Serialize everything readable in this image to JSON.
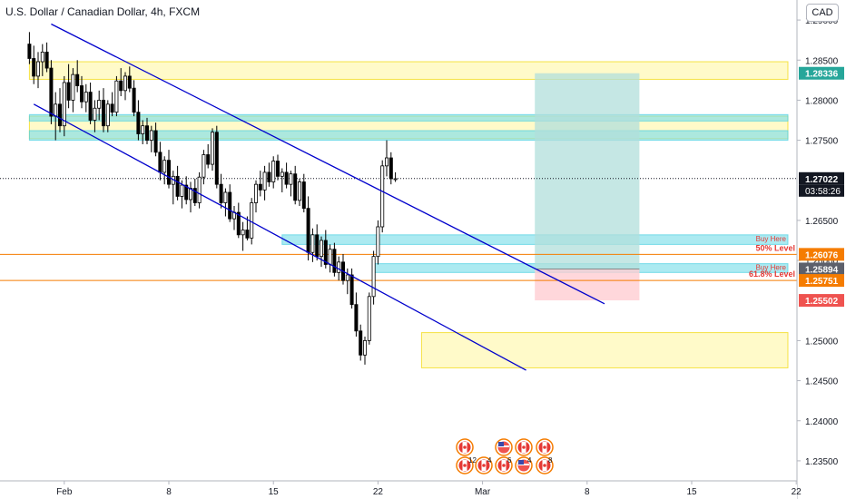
{
  "header": {
    "title": "U.S. Dollar / Canadian Dollar, 4h, FXCM",
    "currency": "CAD"
  },
  "colors": {
    "bull": "#ffffff",
    "bear": "#000000",
    "channel": "#0000cc",
    "zone_yellow": "#fff59d",
    "zone_cyan": "#80deea",
    "target_zone": "#b2dfdb",
    "stop_zone": "#ffcdd2",
    "level_orange": "#f57c00",
    "price_tag_green": "#26a69a",
    "price_tag_black": "#131722",
    "price_tag_orange": "#f57c00",
    "price_tag_red": "#ef5350",
    "price_tag_gray": "#5d606b",
    "zone_label_red": "#e53935"
  },
  "chart_data": {
    "type": "candlestick",
    "ylim": [
      1.2325,
      1.2925
    ],
    "y_ticks": [
      "1.29000",
      "1.28500",
      "1.28000",
      "1.27500",
      "1.26500",
      "1.26000",
      "1.25000",
      "1.24500",
      "1.24000",
      "1.23500"
    ],
    "y_tick_values": [
      1.29,
      1.285,
      1.28,
      1.275,
      1.265,
      1.26,
      1.25,
      1.245,
      1.24,
      1.235
    ],
    "x_ticks": [
      "Feb",
      "8",
      "15",
      "22",
      "Mar",
      "8",
      "15",
      "22"
    ],
    "x_tick_bars": [
      6,
      30,
      54,
      78,
      102,
      126,
      150,
      174
    ],
    "current_price": 1.27022,
    "countdown": "03:58:26",
    "price_labels": [
      {
        "text": "1.28336",
        "value": 1.28336,
        "style": "green"
      },
      {
        "text": "1.27022",
        "value": 1.27022,
        "style": "black"
      },
      {
        "text": "1.26076",
        "value": 1.26076,
        "style": "orange"
      },
      {
        "text": "1.25894",
        "value": 1.25894,
        "style": "gray"
      },
      {
        "text": "1.25751",
        "value": 1.25751,
        "style": "orange"
      },
      {
        "text": "1.25502",
        "value": 1.25502,
        "style": "red"
      }
    ],
    "horizontal_levels": [
      {
        "label": "50% Level",
        "value": 1.26076
      },
      {
        "label": "61.8% Level",
        "value": 1.25751
      }
    ],
    "zones": [
      {
        "kind": "yellow",
        "from_bar": -2,
        "to_bar": 178,
        "top": 1.2848,
        "bottom": 1.2826
      },
      {
        "kind": "yellow",
        "from_bar": -2,
        "to_bar": 178,
        "top": 1.278,
        "bottom": 1.2752
      },
      {
        "kind": "cyan",
        "from_bar": -2,
        "to_bar": 178,
        "top": 1.2782,
        "bottom": 1.2774
      },
      {
        "kind": "cyan",
        "from_bar": -2,
        "to_bar": 178,
        "top": 1.2762,
        "bottom": 1.275
      },
      {
        "kind": "cyan",
        "from_bar": 56,
        "to_bar": 178,
        "top": 1.2632,
        "bottom": 1.262,
        "label": "Buy Here"
      },
      {
        "kind": "cyan",
        "from_bar": 77,
        "to_bar": 178,
        "top": 1.2596,
        "bottom": 1.2585,
        "label": "Buy Here"
      },
      {
        "kind": "yellow",
        "from_bar": 88,
        "to_bar": 178,
        "top": 1.251,
        "bottom": 1.2466
      }
    ],
    "position_tool": {
      "from_bar": 114,
      "to_bar": 138,
      "entry": 1.25894,
      "target": 1.28336,
      "stop": 1.25502
    },
    "channel_lines": [
      {
        "x1": 3,
        "y1": 1.2895,
        "x2": 130,
        "y2": 1.2546
      },
      {
        "x1": -1,
        "y1": 1.2795,
        "x2": 112,
        "y2": 1.2463
      }
    ],
    "candles": [
      [
        1.287,
        1.2885,
        1.2845,
        1.2852
      ],
      [
        1.2852,
        1.2868,
        1.282,
        1.283
      ],
      [
        1.283,
        1.286,
        1.2815,
        1.2848
      ],
      [
        1.2848,
        1.287,
        1.283,
        1.286
      ],
      [
        1.286,
        1.2872,
        1.2835,
        1.284
      ],
      [
        1.284,
        1.285,
        1.277,
        1.278
      ],
      [
        1.278,
        1.281,
        1.275,
        1.2795
      ],
      [
        1.2795,
        1.2815,
        1.276,
        1.2768
      ],
      [
        1.2768,
        1.283,
        1.2755,
        1.2822
      ],
      [
        1.2822,
        1.2845,
        1.279,
        1.28
      ],
      [
        1.28,
        1.284,
        1.2785,
        1.2832
      ],
      [
        1.2832,
        1.285,
        1.281,
        1.2818
      ],
      [
        1.2818,
        1.283,
        1.279,
        1.2798
      ],
      [
        1.2798,
        1.282,
        1.2785,
        1.281
      ],
      [
        1.281,
        1.2822,
        1.277,
        1.2775
      ],
      [
        1.2775,
        1.28,
        1.276,
        1.279
      ],
      [
        1.279,
        1.2812,
        1.2775,
        1.28
      ],
      [
        1.28,
        1.2815,
        1.276,
        1.2768
      ],
      [
        1.2768,
        1.28,
        1.276,
        1.2795
      ],
      [
        1.2795,
        1.281,
        1.278,
        1.2785
      ],
      [
        1.2785,
        1.283,
        1.278,
        1.2824
      ],
      [
        1.2824,
        1.284,
        1.2805,
        1.2812
      ],
      [
        1.2812,
        1.2835,
        1.28,
        1.283
      ],
      [
        1.283,
        1.2842,
        1.281,
        1.2815
      ],
      [
        1.2815,
        1.2825,
        1.278,
        1.2785
      ],
      [
        1.2785,
        1.28,
        1.275,
        1.2758
      ],
      [
        1.2758,
        1.2775,
        1.2745,
        1.2768
      ],
      [
        1.2768,
        1.2778,
        1.2745,
        1.275
      ],
      [
        1.275,
        1.2768,
        1.2735,
        1.2762
      ],
      [
        1.2762,
        1.2772,
        1.273,
        1.2735
      ],
      [
        1.2735,
        1.2748,
        1.27,
        1.271
      ],
      [
        1.271,
        1.273,
        1.2695,
        1.2725
      ],
      [
        1.2725,
        1.2738,
        1.269,
        1.2695
      ],
      [
        1.2695,
        1.2712,
        1.267,
        1.2705
      ],
      [
        1.2705,
        1.2718,
        1.2675,
        1.268
      ],
      [
        1.268,
        1.27,
        1.2665,
        1.2694
      ],
      [
        1.2694,
        1.2705,
        1.267,
        1.2676
      ],
      [
        1.2676,
        1.2698,
        1.266,
        1.269
      ],
      [
        1.269,
        1.2702,
        1.2668,
        1.2672
      ],
      [
        1.2672,
        1.271,
        1.2665,
        1.2704
      ],
      [
        1.2704,
        1.2738,
        1.2695,
        1.2732
      ],
      [
        1.2732,
        1.2745,
        1.2715,
        1.272
      ],
      [
        1.272,
        1.2765,
        1.2712,
        1.276
      ],
      [
        1.276,
        1.2768,
        1.269,
        1.2695
      ],
      [
        1.2695,
        1.2708,
        1.2665,
        1.2672
      ],
      [
        1.2672,
        1.269,
        1.2655,
        1.2685
      ],
      [
        1.2685,
        1.2695,
        1.2648,
        1.2652
      ],
      [
        1.2652,
        1.2668,
        1.2638,
        1.266
      ],
      [
        1.266,
        1.2672,
        1.2628,
        1.2632
      ],
      [
        1.2632,
        1.2648,
        1.2612,
        1.2638
      ],
      [
        1.2638,
        1.2655,
        1.2625,
        1.2628
      ],
      [
        1.2628,
        1.2678,
        1.262,
        1.2672
      ],
      [
        1.2672,
        1.27,
        1.266,
        1.2695
      ],
      [
        1.2695,
        1.2712,
        1.268,
        1.2688
      ],
      [
        1.2688,
        1.2718,
        1.2675,
        1.271
      ],
      [
        1.271,
        1.2722,
        1.2692,
        1.2698
      ],
      [
        1.2698,
        1.273,
        1.269,
        1.2724
      ],
      [
        1.2724,
        1.2732,
        1.27,
        1.2705
      ],
      [
        1.2705,
        1.2715,
        1.2685,
        1.271
      ],
      [
        1.271,
        1.2722,
        1.269,
        1.2695
      ],
      [
        1.2695,
        1.2712,
        1.268,
        1.2708
      ],
      [
        1.2708,
        1.2718,
        1.267,
        1.2675
      ],
      [
        1.2675,
        1.2702,
        1.2668,
        1.2698
      ],
      [
        1.2698,
        1.2708,
        1.266,
        1.2665
      ],
      [
        1.2665,
        1.268,
        1.26,
        1.261
      ],
      [
        1.261,
        1.264,
        1.2598,
        1.2632
      ],
      [
        1.2632,
        1.2645,
        1.26,
        1.2605
      ],
      [
        1.2605,
        1.263,
        1.2592,
        1.2625
      ],
      [
        1.2625,
        1.2638,
        1.259,
        1.2595
      ],
      [
        1.2595,
        1.262,
        1.2585,
        1.2614
      ],
      [
        1.2614,
        1.2622,
        1.258,
        1.2585
      ],
      [
        1.2585,
        1.2605,
        1.2575,
        1.2598
      ],
      [
        1.2598,
        1.2608,
        1.257,
        1.2575
      ],
      [
        1.2575,
        1.259,
        1.2558,
        1.2582
      ],
      [
        1.2582,
        1.259,
        1.254,
        1.2545
      ],
      [
        1.2545,
        1.256,
        1.2505,
        1.2512
      ],
      [
        1.2512,
        1.252,
        1.2475,
        1.2482
      ],
      [
        1.2482,
        1.2505,
        1.247,
        1.25
      ],
      [
        1.25,
        1.256,
        1.2495,
        1.2555
      ],
      [
        1.2555,
        1.2612,
        1.2545,
        1.2605
      ],
      [
        1.2605,
        1.265,
        1.2595,
        1.2642
      ],
      [
        1.2642,
        1.2725,
        1.2635,
        1.2718
      ],
      [
        1.2718,
        1.275,
        1.2705,
        1.2728
      ],
      [
        1.2728,
        1.2735,
        1.2695,
        1.2702
      ],
      [
        1.2702,
        1.271,
        1.2698,
        1.2702
      ]
    ],
    "candle_bars": [
      -2,
      -1,
      0,
      1,
      2,
      3,
      4,
      5,
      6,
      7,
      8,
      9,
      10,
      11,
      12,
      13,
      14,
      15,
      16,
      17,
      18,
      19,
      20,
      21,
      22,
      23,
      24,
      25,
      26,
      27,
      28,
      29,
      30,
      31,
      32,
      33,
      34,
      35,
      36,
      37,
      38,
      39,
      40,
      41,
      42,
      43,
      44,
      45,
      46,
      47,
      48,
      49,
      50,
      51,
      52,
      53,
      54,
      55,
      56,
      57,
      58,
      59,
      60,
      61,
      62,
      63,
      64,
      65,
      66,
      67,
      68,
      69,
      70,
      71,
      72,
      73,
      74,
      75,
      76,
      77,
      78,
      79,
      80,
      81,
      82
    ]
  },
  "events": [
    {
      "flag": "ca",
      "count": ""
    },
    {
      "flag": "us",
      "count": ""
    },
    {
      "flag": "ca",
      "count": ""
    },
    {
      "flag": "ca",
      "count": ""
    },
    {
      "flag": "ca",
      "count": "12"
    },
    {
      "flag": "ca",
      "count": "4"
    },
    {
      "flag": "ca",
      "count": "6"
    },
    {
      "flag": "us",
      "count": "4"
    },
    {
      "flag": "ca",
      "count": "8"
    }
  ]
}
